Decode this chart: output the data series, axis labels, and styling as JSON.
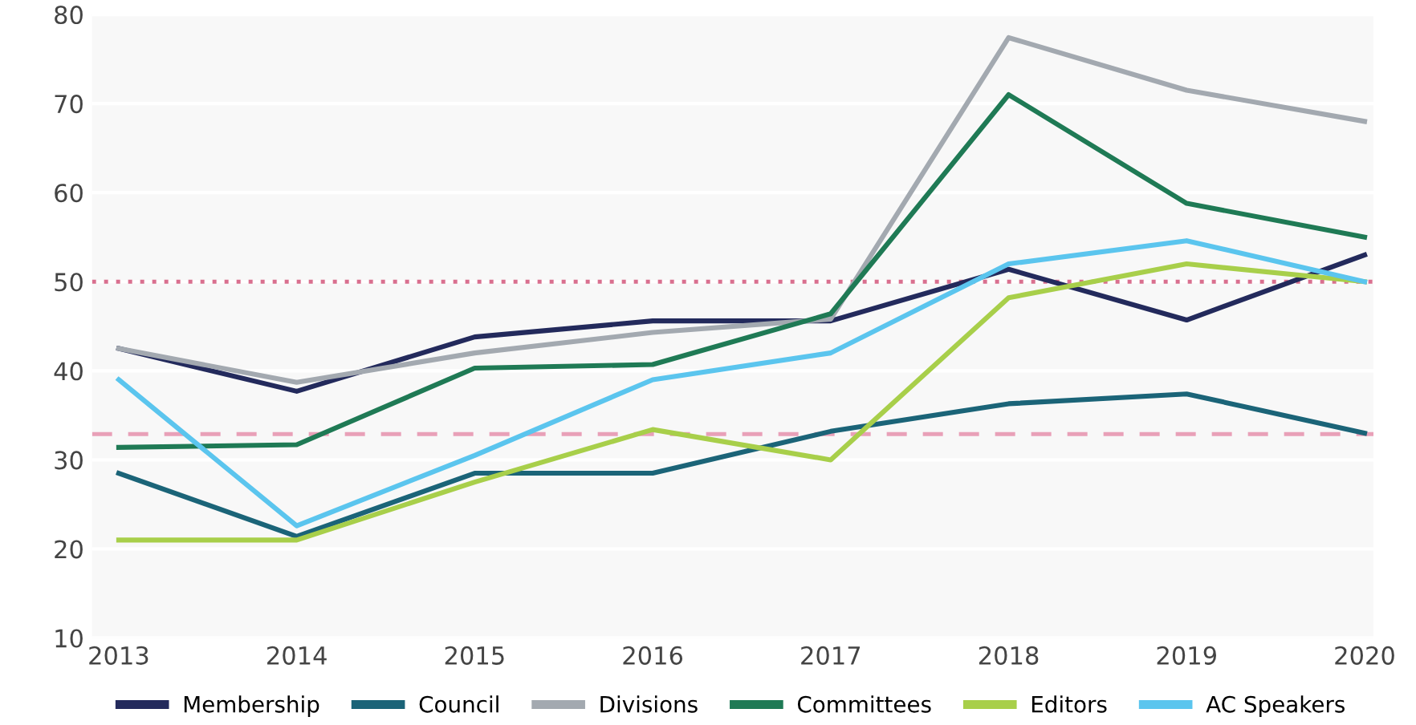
{
  "chart_data": {
    "type": "line",
    "categories": [
      "2013",
      "2014",
      "2015",
      "2016",
      "2017",
      "2018",
      "2019",
      "2020"
    ],
    "ylim": [
      10,
      80
    ],
    "yticks": [
      10,
      20,
      30,
      40,
      50,
      60,
      70,
      80
    ],
    "grid": "y",
    "legend": "bottom",
    "line_style": "solid",
    "series": [
      {
        "name": "Membership",
        "color": "#232a5c",
        "values": [
          42.5,
          37.7,
          43.8,
          45.6,
          45.6,
          51.4,
          45.7,
          53
        ]
      },
      {
        "name": "Council",
        "color": "#1b6478",
        "values": [
          28.5,
          21.4,
          28.5,
          28.5,
          33.2,
          36.3,
          37.4,
          33
        ]
      },
      {
        "name": "Divisions",
        "color": "#a3a9b0",
        "values": [
          42.5,
          38.7,
          42,
          44.3,
          45.8,
          77.4,
          71.5,
          68
        ]
      },
      {
        "name": "Committees",
        "color": "#1f7a55",
        "values": [
          31.4,
          31.7,
          40.3,
          40.7,
          46.4,
          71,
          58.8,
          55
        ]
      },
      {
        "name": "Editors",
        "color": "#a8cf4a",
        "values": [
          21,
          21,
          27.5,
          33.4,
          30,
          48.2,
          52,
          50
        ]
      },
      {
        "name": "AC Speakers",
        "color": "#5bc5ee",
        "values": [
          39,
          22.6,
          30.5,
          39,
          42,
          52,
          54.6,
          50
        ]
      }
    ],
    "ref_lines": [
      {
        "axis": "y",
        "value": 50,
        "label": null,
        "color": "#d9708f",
        "line_style": "dotted"
      },
      {
        "axis": "y",
        "value": 32.9,
        "label": null,
        "color": "#e8a0b8",
        "line_style": "dashed"
      }
    ]
  }
}
